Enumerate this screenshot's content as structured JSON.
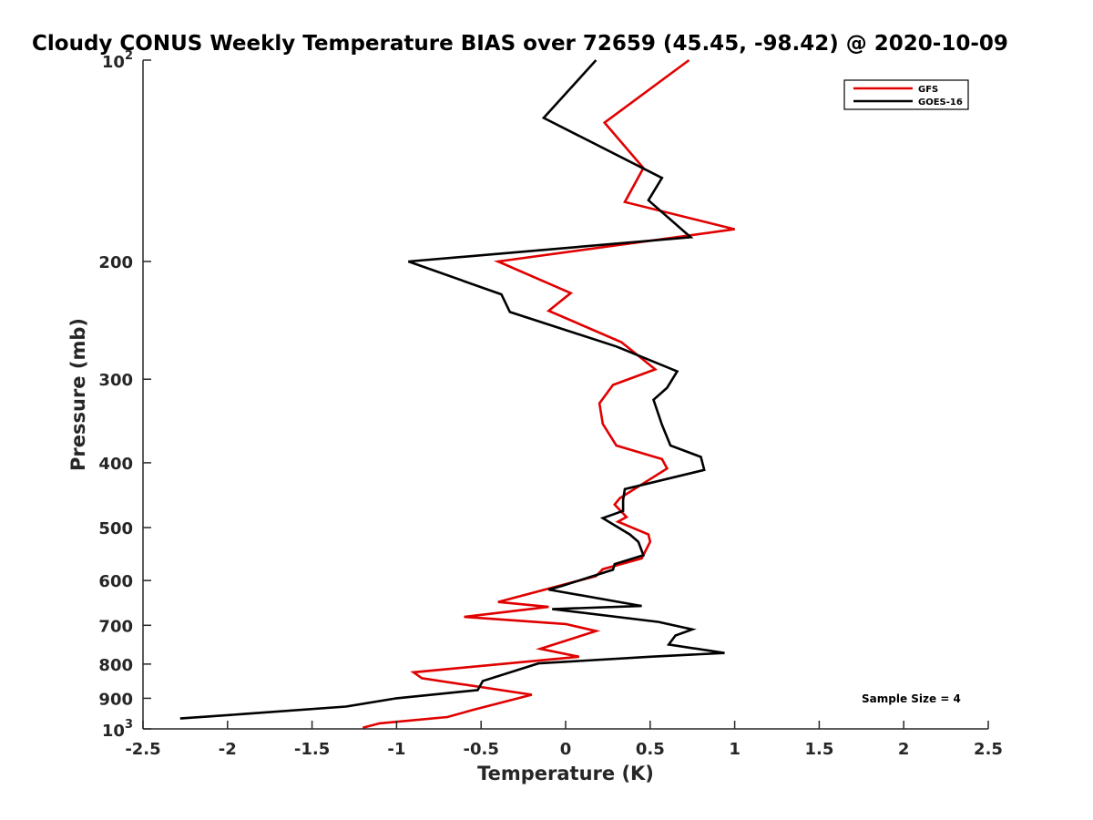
{
  "chart_data": {
    "type": "line",
    "title": "Cloudy CONUS Weekly Temperature BIAS over 72659 (45.45, -98.42) @ 2020-10-09",
    "xlabel": "Temperature (K)",
    "ylabel": "Pressure (mb)",
    "xlim": [
      -2.5,
      2.5
    ],
    "ylim": [
      100,
      1000
    ],
    "y_scale": "log",
    "y_reversed": true,
    "x_ticks": [
      "-2.5",
      "-2",
      "-1.5",
      "-1",
      "-0.5",
      "0",
      "0.5",
      "1",
      "1.5",
      "2",
      "2.5"
    ],
    "y_ticks": [
      {
        "value": 100,
        "base": "10",
        "exp": "2"
      },
      {
        "value": 200,
        "label": "200"
      },
      {
        "value": 300,
        "label": "300"
      },
      {
        "value": 400,
        "label": "400"
      },
      {
        "value": 500,
        "label": "500"
      },
      {
        "value": 600,
        "label": "600"
      },
      {
        "value": 700,
        "label": "700"
      },
      {
        "value": 800,
        "label": "800"
      },
      {
        "value": 900,
        "label": "900"
      },
      {
        "value": 1000,
        "base": "10",
        "exp": "3"
      }
    ],
    "grid": false,
    "legend_position": "top-right",
    "annotation": "Sample Size = 4",
    "series": [
      {
        "name": "GFS",
        "color": "#e00000",
        "points": [
          [
            0.73,
            100
          ],
          [
            0.23,
            124
          ],
          [
            0.46,
            145
          ],
          [
            0.35,
            163
          ],
          [
            1.0,
            179
          ],
          [
            -0.4,
            200
          ],
          [
            0.03,
            223
          ],
          [
            -0.1,
            237
          ],
          [
            0.33,
            264
          ],
          [
            0.53,
            290
          ],
          [
            0.28,
            306
          ],
          [
            0.2,
            326
          ],
          [
            0.22,
            350
          ],
          [
            0.3,
            377
          ],
          [
            0.57,
            395
          ],
          [
            0.6,
            408
          ],
          [
            0.32,
            452
          ],
          [
            0.29,
            462
          ],
          [
            0.36,
            482
          ],
          [
            0.31,
            490
          ],
          [
            0.49,
            512
          ],
          [
            0.5,
            525
          ],
          [
            0.45,
            556
          ],
          [
            0.22,
            577
          ],
          [
            0.18,
            591
          ],
          [
            -0.4,
            646
          ],
          [
            -0.1,
            657
          ],
          [
            -0.6,
            680
          ],
          [
            0.0,
            697
          ],
          [
            0.18,
            714
          ],
          [
            -0.15,
            759
          ],
          [
            0.08,
            780
          ],
          [
            -0.9,
            823
          ],
          [
            -0.85,
            840
          ],
          [
            -0.2,
            889
          ],
          [
            -0.55,
            937
          ],
          [
            -0.7,
            960
          ],
          [
            -1.1,
            981
          ],
          [
            -1.2,
            996
          ]
        ]
      },
      {
        "name": "GOES-16",
        "color": "#000000",
        "points": [
          [
            0.18,
            100
          ],
          [
            -0.13,
            122
          ],
          [
            0.57,
            150
          ],
          [
            0.49,
            162
          ],
          [
            0.74,
            184
          ],
          [
            -0.93,
            200
          ],
          [
            -0.38,
            224
          ],
          [
            -0.33,
            238
          ],
          [
            0.3,
            268
          ],
          [
            0.66,
            292
          ],
          [
            0.6,
            309
          ],
          [
            0.52,
            322
          ],
          [
            0.57,
            351
          ],
          [
            0.62,
            377
          ],
          [
            0.8,
            392
          ],
          [
            0.82,
            410
          ],
          [
            0.35,
            438
          ],
          [
            0.34,
            455
          ],
          [
            0.34,
            472
          ],
          [
            0.22,
            484
          ],
          [
            0.38,
            512
          ],
          [
            0.43,
            525
          ],
          [
            0.46,
            550
          ],
          [
            0.29,
            567
          ],
          [
            0.28,
            578
          ],
          [
            -0.02,
            611
          ],
          [
            -0.1,
            619
          ],
          [
            0.45,
            655
          ],
          [
            -0.08,
            662
          ],
          [
            0.55,
            692
          ],
          [
            0.75,
            710
          ],
          [
            0.65,
            725
          ],
          [
            0.61,
            748
          ],
          [
            0.94,
            770
          ],
          [
            0.5,
            780
          ],
          [
            -0.16,
            798
          ],
          [
            -0.49,
            848
          ],
          [
            -0.52,
            875
          ],
          [
            -1.0,
            900
          ],
          [
            -1.3,
            926
          ],
          [
            -1.9,
            950
          ],
          [
            -2.28,
            965
          ]
        ]
      }
    ]
  }
}
